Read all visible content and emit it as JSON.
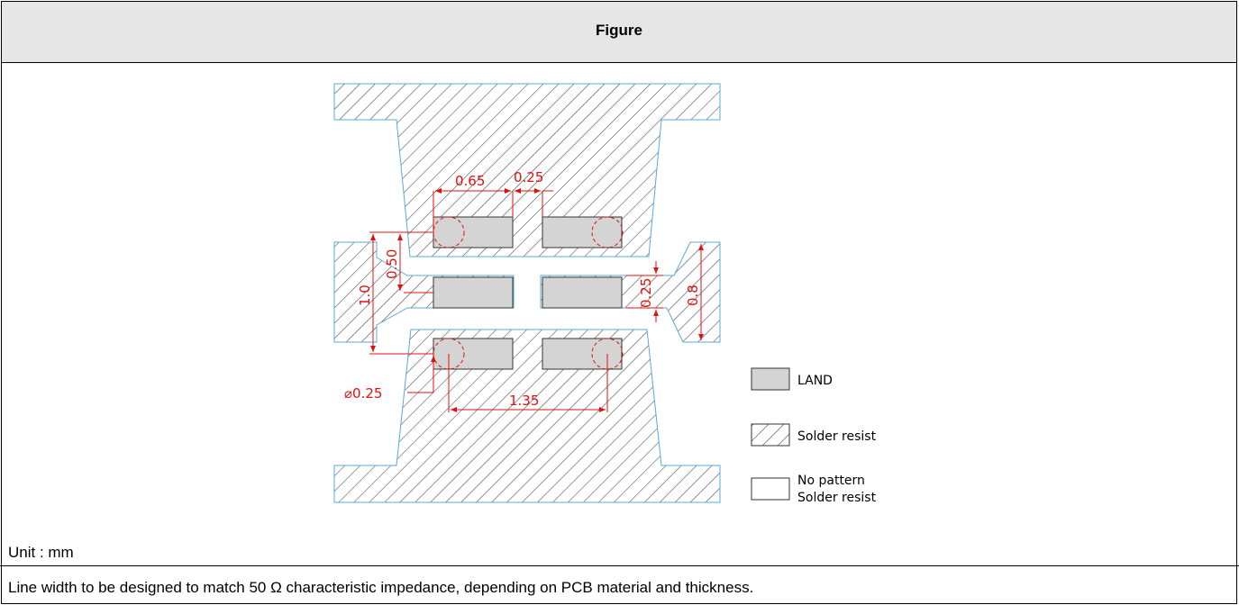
{
  "header": {
    "title": "Figure"
  },
  "dimensions": {
    "d_065": "0.65",
    "d_025_top": "0.25",
    "d_050": "0.50",
    "d_10": "1.0",
    "d_025_side": "0.25",
    "d_08": "0.8",
    "d_dia025": "⌀0.25",
    "d_135": "1.35"
  },
  "legend": {
    "land": "LAND",
    "solder_resist": "Solder resist",
    "no_pattern_line1": "No pattern",
    "no_pattern_line2": "Solder resist"
  },
  "notes": {
    "unit": "Unit : mm",
    "line_width": "Line width to be designed to match 50 Ω characteristic impedance, depending on PCB material and thickness."
  },
  "colors": {
    "land": "#d4d4d4",
    "dimension": "#e01010",
    "hatch": "#444444",
    "header_bg": "#e6e6e6"
  }
}
